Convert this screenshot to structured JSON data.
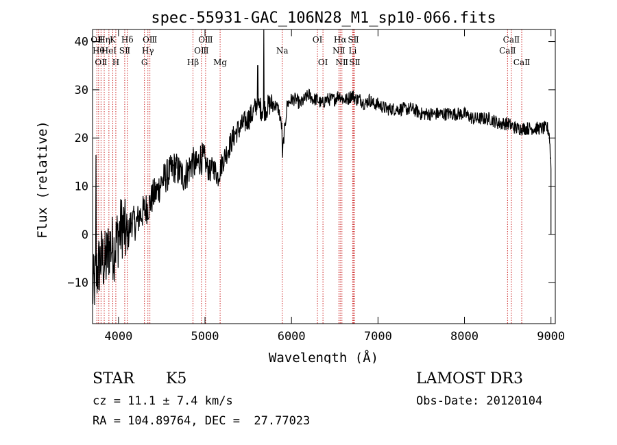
{
  "chart_data": {
    "type": "line",
    "title": "spec-55931-GAC_106N28_M1_sp10-066.fits",
    "xlabel": "Wavelength (Å)",
    "ylabel": "Flux (relative)",
    "xlim": [
      3700,
      9050
    ],
    "ylim": [
      -18.5,
      42.5
    ],
    "x_ticks": [
      4000,
      5000,
      6000,
      7000,
      8000,
      9000
    ],
    "x_tick_labels": [
      "4000",
      "5000",
      "6000",
      "7000",
      "8000",
      "9000"
    ],
    "y_ticks": [
      -10,
      0,
      10,
      20,
      30,
      40
    ],
    "y_tick_labels": [
      "−10",
      "0",
      "10",
      "20",
      "30",
      "40"
    ],
    "series": [
      {
        "name": "flux",
        "x": [
          3700,
          3750,
          3800,
          3850,
          3900,
          3950,
          4000,
          4050,
          4100,
          4150,
          4200,
          4250,
          4300,
          4350,
          4400,
          4450,
          4500,
          4550,
          4600,
          4650,
          4700,
          4750,
          4800,
          4850,
          4900,
          4950,
          5000,
          5050,
          5100,
          5150,
          5200,
          5250,
          5300,
          5350,
          5400,
          5450,
          5500,
          5550,
          5600,
          5650,
          5700,
          5750,
          5800,
          5850,
          5890,
          5895,
          5900,
          5950,
          6000,
          6050,
          6100,
          6150,
          6200,
          6250,
          6300,
          6350,
          6400,
          6450,
          6500,
          6550,
          6600,
          6650,
          6700,
          6750,
          6800,
          6850,
          6900,
          6950,
          7000,
          7100,
          7200,
          7300,
          7400,
          7500,
          7600,
          7700,
          7800,
          7900,
          8000,
          8100,
          8200,
          8300,
          8400,
          8500,
          8600,
          8700,
          8800,
          8900,
          8960,
          8980,
          9000
        ],
        "values": [
          -12,
          -8,
          -5,
          -6,
          -2,
          -3,
          0,
          2,
          -1,
          3,
          2,
          4,
          5,
          6,
          8,
          9,
          11,
          12,
          13,
          14,
          13,
          12,
          13,
          15,
          14,
          16,
          15,
          13,
          14,
          12,
          15,
          17,
          19,
          21,
          22,
          23,
          24,
          25,
          27,
          26,
          26,
          27,
          27,
          26,
          22,
          14,
          18,
          27,
          28,
          28,
          27,
          28,
          29,
          28,
          28,
          27,
          28,
          28,
          28,
          29,
          28,
          28,
          29,
          28,
          28,
          27,
          28,
          27,
          27,
          26,
          26,
          26,
          26,
          25,
          25,
          25,
          25,
          25,
          25,
          24,
          24,
          24,
          23,
          23,
          22,
          22,
          22,
          22,
          22,
          21,
          14
        ],
        "spikes": [
          {
            "x": 3740,
            "y": 16.5
          },
          {
            "x": 5610,
            "y": 35
          },
          {
            "x": 5680,
            "y": 42.5
          }
        ]
      }
    ],
    "lines": [
      {
        "x": 3750,
        "upper": "OⅡ"
      },
      {
        "x": 3770,
        "upper": "Hθ"
      },
      {
        "x": 3798,
        "lower": "OⅡ"
      },
      {
        "x": 3835,
        "upper": "Hη"
      },
      {
        "x": 3889,
        "upper": "HeⅠ"
      },
      {
        "x": 3934,
        "upper": "K"
      },
      {
        "x": 3969,
        "lower": "H"
      },
      {
        "x": 4072,
        "upper": "SⅡ"
      },
      {
        "x": 4102,
        "upper": "Hδ"
      },
      {
        "x": 4300,
        "lower": "G"
      },
      {
        "x": 4340,
        "upper": "Hγ"
      },
      {
        "x": 4363,
        "upper": "OⅢ"
      },
      {
        "x": 4861,
        "lower": "Hβ"
      },
      {
        "x": 4959,
        "upper": "OⅢ"
      },
      {
        "x": 5007,
        "upper": "OⅢ"
      },
      {
        "x": 5175,
        "lower": "Mg"
      },
      {
        "x": 5893,
        "upper": "Na"
      },
      {
        "x": 6300,
        "upper": "OⅠ"
      },
      {
        "x": 6364,
        "lower": "OⅠ"
      },
      {
        "x": 6548,
        "upper": "NⅡ"
      },
      {
        "x": 6563,
        "upper": "Hα"
      },
      {
        "x": 6583,
        "lower": "NⅡ"
      },
      {
        "x": 6707,
        "upper": "Li"
      },
      {
        "x": 6716,
        "upper": "SⅡ"
      },
      {
        "x": 6731,
        "lower": "SⅡ"
      },
      {
        "x": 8498,
        "upper": "CaⅡ"
      },
      {
        "x": 8542,
        "upper": "CaⅡ"
      },
      {
        "x": 8662,
        "lower": "CaⅡ"
      }
    ]
  },
  "info": {
    "object_class": "STAR",
    "subclass": "K5",
    "survey": "LAMOST DR3",
    "redshift": "cz = 11.1 ± 7.4 km/s",
    "obs_date": "Obs-Date: 20120104",
    "coords": "RA = 104.89764, DEC =  27.77023"
  },
  "colors": {
    "line_marker": "#cc2222",
    "spectrum": "#000000"
  }
}
